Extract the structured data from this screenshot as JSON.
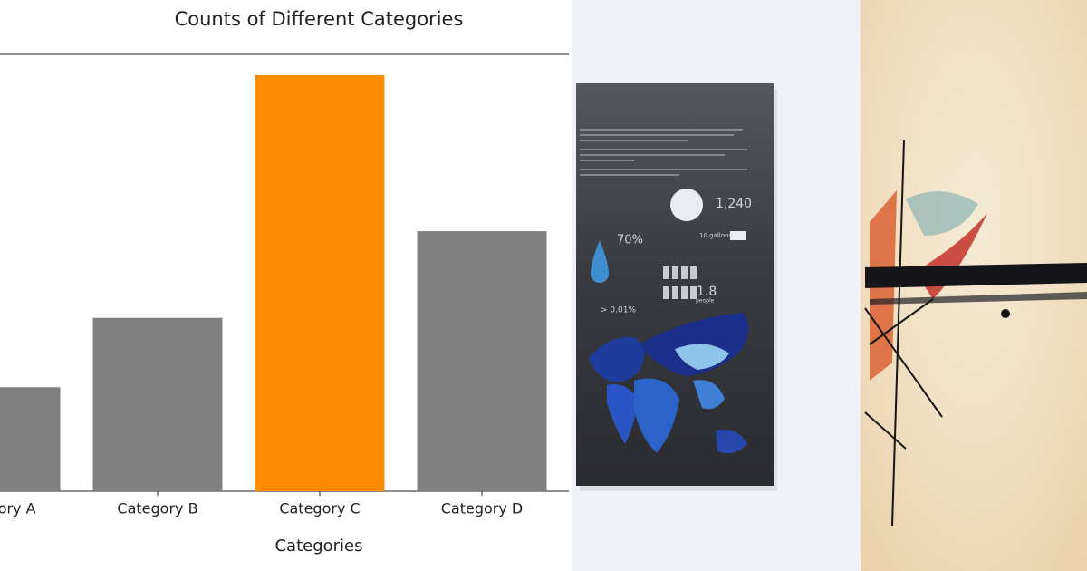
{
  "chart_data": {
    "type": "bar",
    "title": "Counts of Different Categories",
    "xlabel": "Categories",
    "categories": [
      "Category A",
      "Category B",
      "Category C",
      "Category D"
    ],
    "values": [
      12,
      20,
      48,
      30
    ],
    "colors": [
      "#808080",
      "#808080",
      "#ff8c00",
      "#808080"
    ],
    "ylim": [
      0,
      50.4
    ]
  },
  "poster": {
    "stats": [
      "70%",
      "1,240",
      "10 gallons",
      "1.8",
      "people",
      "> 0.01%"
    ]
  }
}
